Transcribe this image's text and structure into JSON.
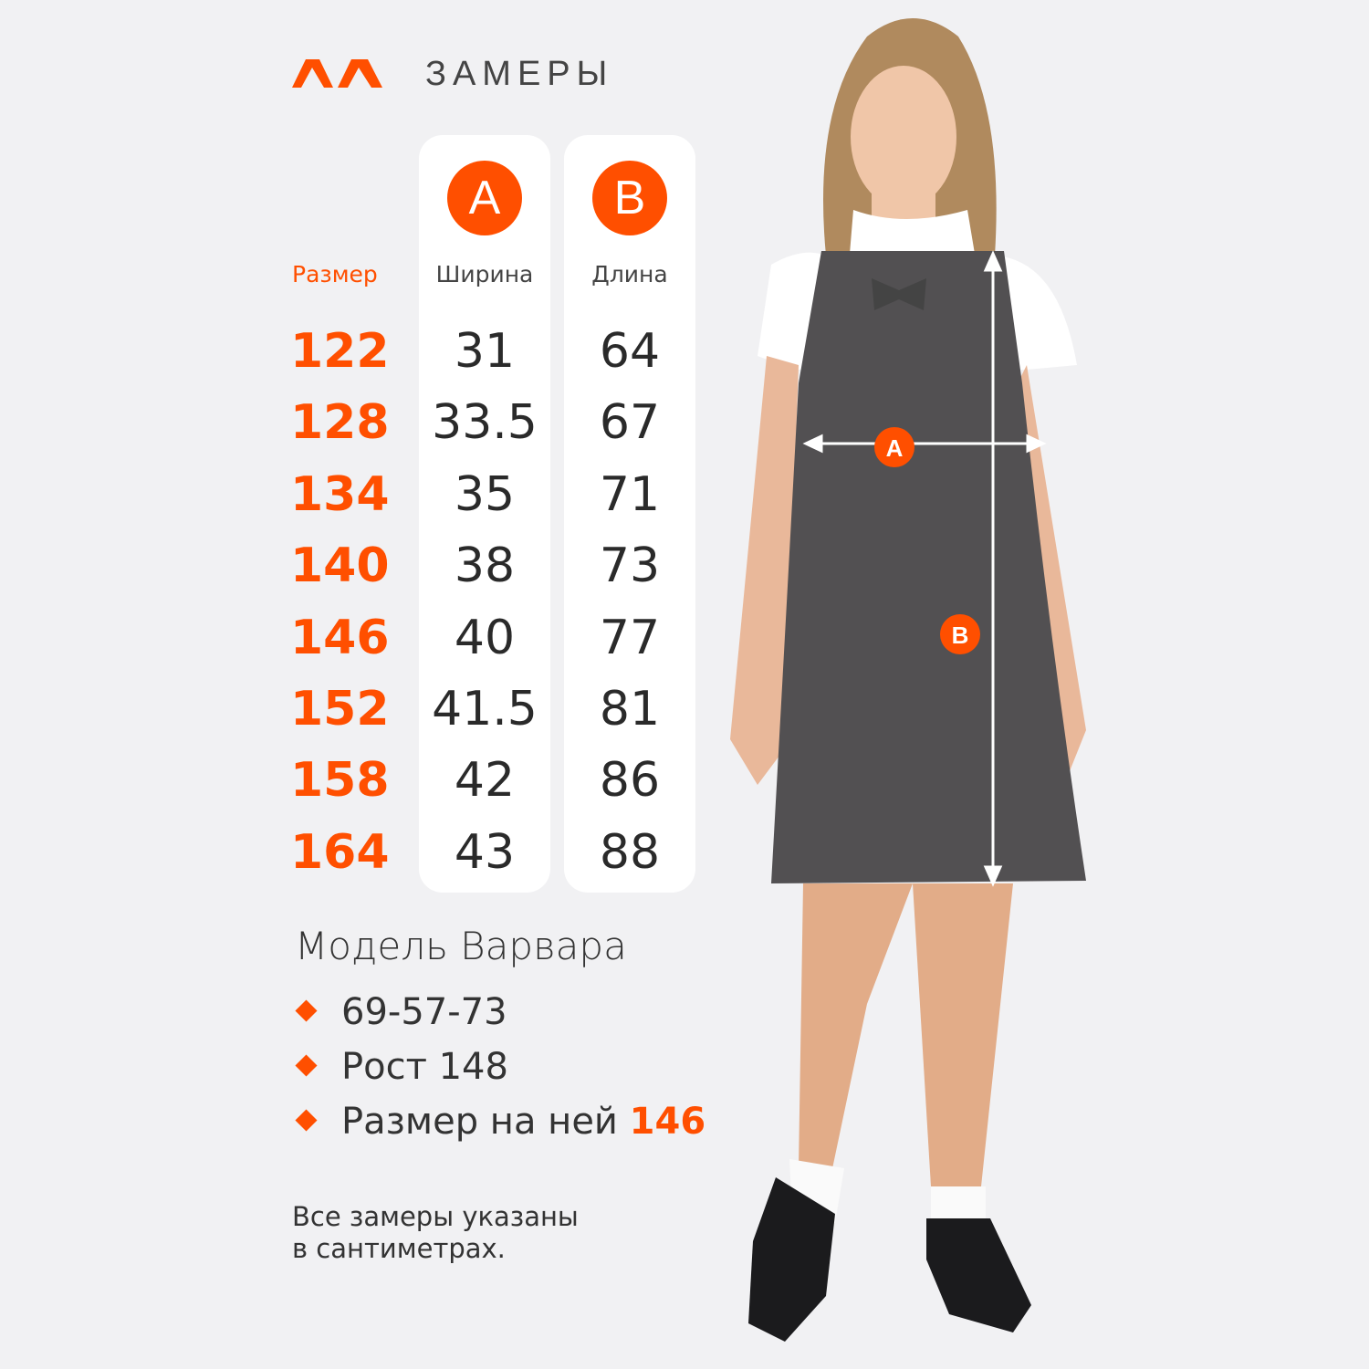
{
  "header": {
    "title": "ЗАМЕРЫ",
    "logo": "brand-logo"
  },
  "colors": {
    "accent": "#ff4f00",
    "background": "#f1f1f3",
    "card": "#ffffff"
  },
  "table": {
    "size_header": "Размер",
    "columns": [
      {
        "badge": "A",
        "label": "Ширина"
      },
      {
        "badge": "B",
        "label": "Длина"
      }
    ],
    "rows": [
      {
        "size": "122",
        "width": "31",
        "length": "64"
      },
      {
        "size": "128",
        "width": "33.5",
        "length": "67"
      },
      {
        "size": "134",
        "width": "35",
        "length": "71"
      },
      {
        "size": "140",
        "width": "38",
        "length": "73"
      },
      {
        "size": "146",
        "width": "40",
        "length": "77"
      },
      {
        "size": "152",
        "width": "41.5",
        "length": "81"
      },
      {
        "size": "158",
        "width": "42",
        "length": "86"
      },
      {
        "size": "164",
        "width": "43",
        "length": "88"
      }
    ]
  },
  "model": {
    "name": "Модель Варвара",
    "params": "69-57-73",
    "height": "Рост 148",
    "size_label": "Размер на ней",
    "size_value": "146"
  },
  "note": {
    "line1": "Все замеры указаны",
    "line2": "в сантиметрах."
  },
  "photo": {
    "marker_a": "A",
    "marker_b": "B"
  }
}
